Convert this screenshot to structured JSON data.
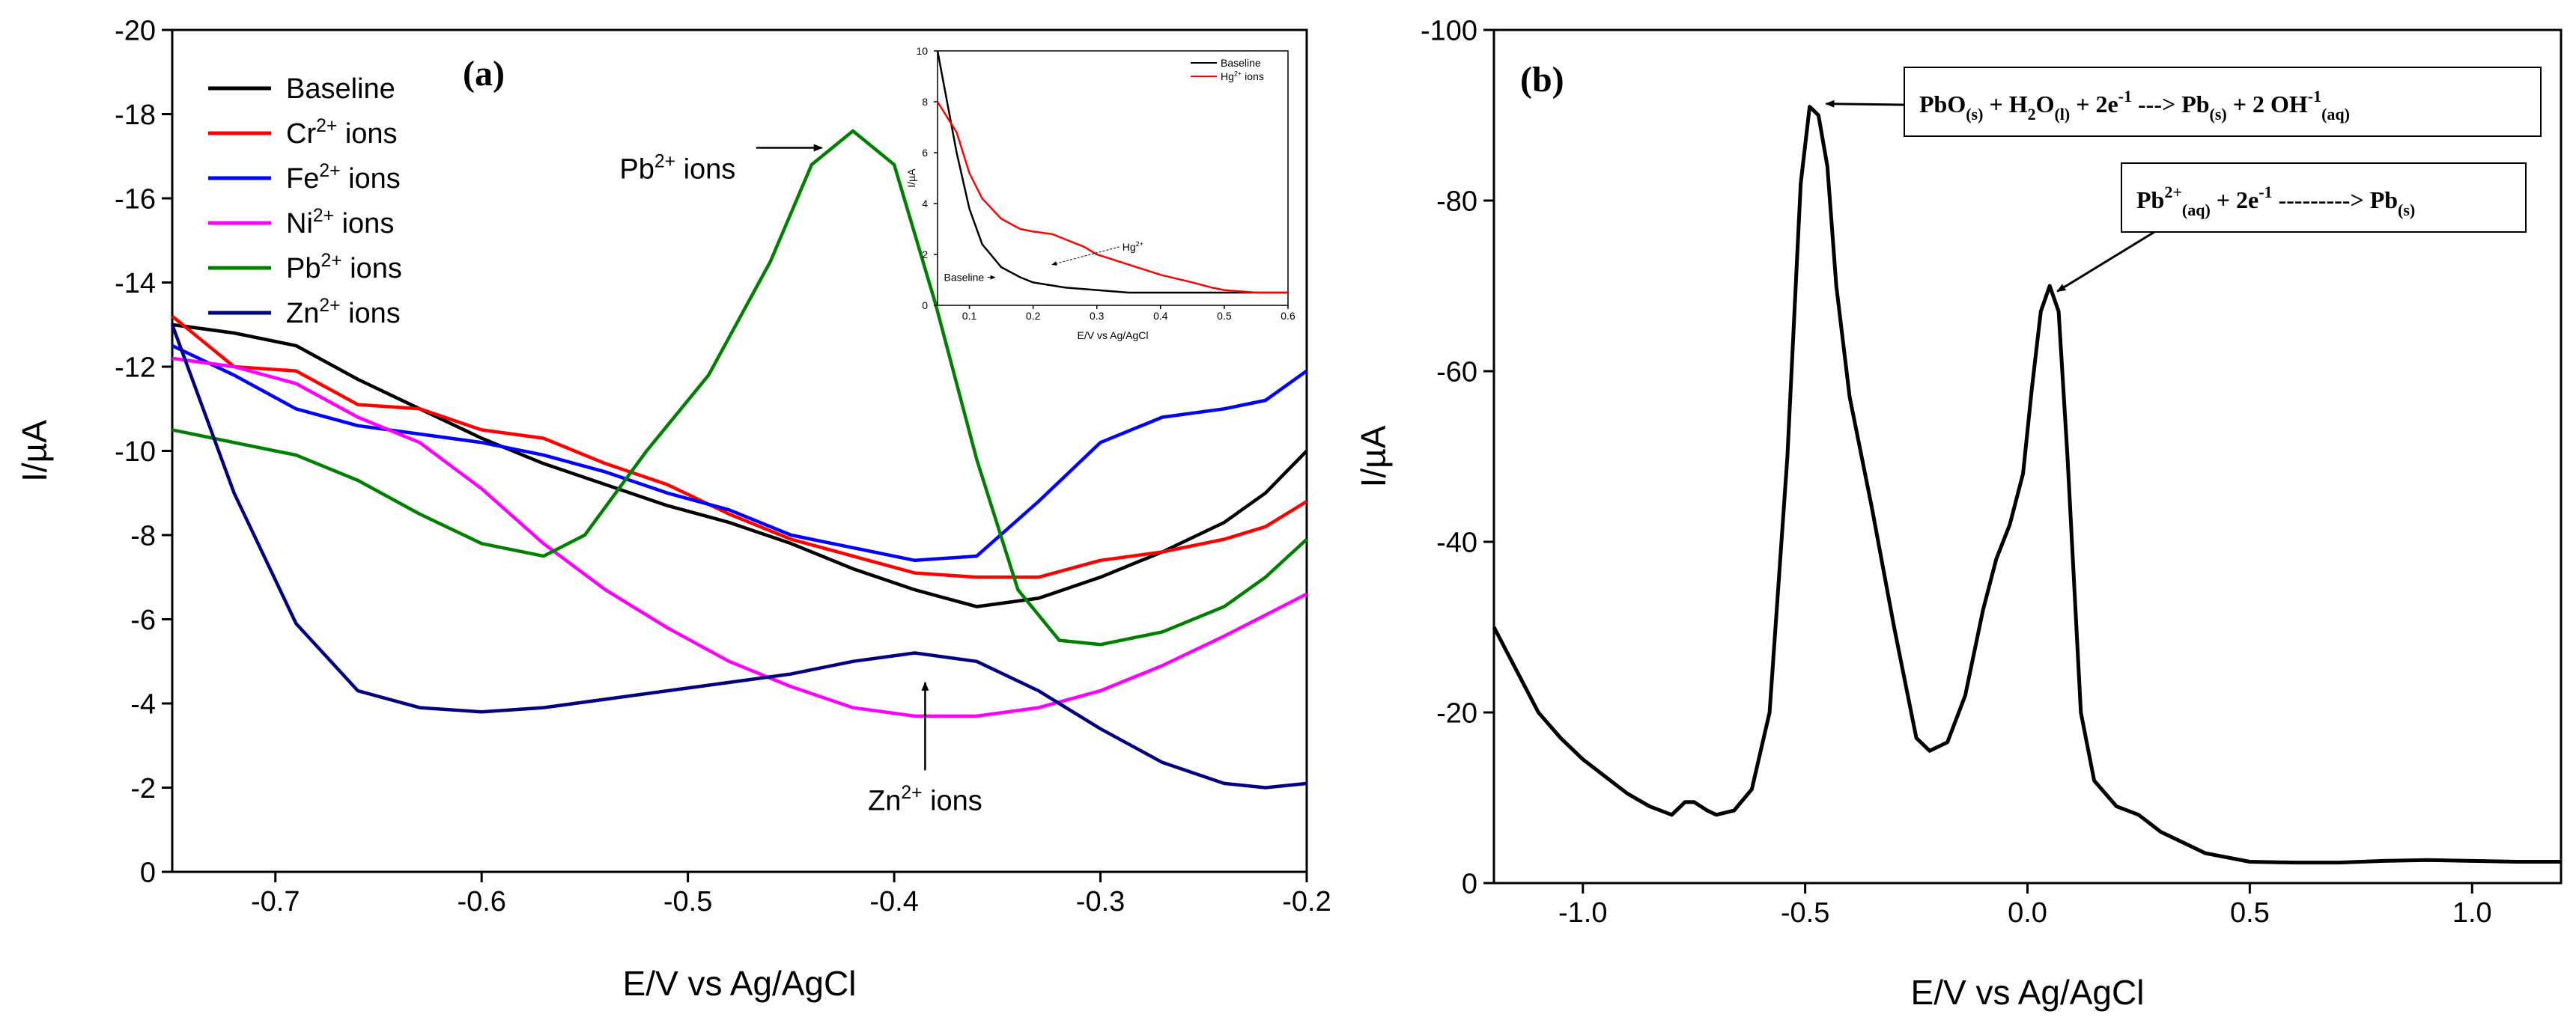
{
  "chart_data": [
    {
      "type": "line",
      "panel_label": "(a)",
      "xlabel": "E/V vs Ag/AgCl",
      "ylabel": "I/µA",
      "xlim": [
        -0.75,
        -0.2
      ],
      "ylim": [
        0,
        -20
      ],
      "x_ticks": [
        -0.7,
        -0.6,
        -0.5,
        -0.4,
        -0.3,
        -0.2
      ],
      "x_tick_labels": [
        "-0.7",
        "-0.6",
        "-0.5",
        "-0.4",
        "-0.3",
        "-0.2"
      ],
      "y_ticks": [
        0,
        -2,
        -4,
        -6,
        -8,
        -10,
        -12,
        -14,
        -16,
        -18,
        -20
      ],
      "y_tick_labels": [
        "0",
        "-2",
        "-4",
        "-6",
        "-8",
        "-10",
        "-12",
        "-14",
        "-16",
        "-18",
        "-20"
      ],
      "legend_position": "top-left",
      "series": [
        {
          "name": "Baseline",
          "color": "#000000",
          "x": [
            -0.75,
            -0.72,
            -0.69,
            -0.66,
            -0.63,
            -0.6,
            -0.57,
            -0.54,
            -0.51,
            -0.48,
            -0.45,
            -0.42,
            -0.39,
            -0.36,
            -0.33,
            -0.3,
            -0.27,
            -0.24,
            -0.22,
            -0.2
          ],
          "y": [
            -13.0,
            -12.8,
            -12.5,
            -11.7,
            -11.0,
            -10.3,
            -9.7,
            -9.2,
            -8.7,
            -8.3,
            -7.8,
            -7.2,
            -6.7,
            -6.3,
            -6.5,
            -7.0,
            -7.6,
            -8.3,
            -9.0,
            -10.0
          ]
        },
        {
          "name": "Cr²⁺ ions",
          "color": "#ff0000",
          "x": [
            -0.75,
            -0.72,
            -0.69,
            -0.66,
            -0.63,
            -0.6,
            -0.57,
            -0.54,
            -0.51,
            -0.48,
            -0.45,
            -0.42,
            -0.39,
            -0.36,
            -0.33,
            -0.3,
            -0.27,
            -0.24,
            -0.22,
            -0.2
          ],
          "y": [
            -13.2,
            -12.0,
            -11.9,
            -11.1,
            -11.0,
            -10.5,
            -10.3,
            -9.7,
            -9.2,
            -8.5,
            -7.9,
            -7.5,
            -7.1,
            -7.0,
            -7.0,
            -7.4,
            -7.6,
            -7.9,
            -8.2,
            -8.8
          ]
        },
        {
          "name": "Fe²⁺ ions",
          "color": "#0000ff",
          "x": [
            -0.75,
            -0.72,
            -0.69,
            -0.66,
            -0.63,
            -0.6,
            -0.57,
            -0.54,
            -0.51,
            -0.48,
            -0.45,
            -0.42,
            -0.39,
            -0.36,
            -0.33,
            -0.3,
            -0.27,
            -0.24,
            -0.22,
            -0.2
          ],
          "y": [
            -12.5,
            -11.8,
            -11.0,
            -10.6,
            -10.4,
            -10.2,
            -9.9,
            -9.5,
            -9.0,
            -8.6,
            -8.0,
            -7.7,
            -7.4,
            -7.5,
            -8.8,
            -10.2,
            -10.8,
            -11.0,
            -11.2,
            -11.9
          ]
        },
        {
          "name": "Ni²⁺ ions",
          "color": "#ff00ff",
          "x": [
            -0.75,
            -0.72,
            -0.69,
            -0.66,
            -0.63,
            -0.6,
            -0.57,
            -0.54,
            -0.51,
            -0.48,
            -0.45,
            -0.42,
            -0.39,
            -0.36,
            -0.33,
            -0.3,
            -0.27,
            -0.24,
            -0.22,
            -0.2
          ],
          "y": [
            -12.2,
            -12.0,
            -11.6,
            -10.8,
            -10.2,
            -9.1,
            -7.8,
            -6.7,
            -5.8,
            -5.0,
            -4.4,
            -3.9,
            -3.7,
            -3.7,
            -3.9,
            -4.3,
            -4.9,
            -5.6,
            -6.1,
            -6.6
          ]
        },
        {
          "name": "Pb²⁺ ions",
          "color": "#008000",
          "x": [
            -0.75,
            -0.72,
            -0.69,
            -0.66,
            -0.63,
            -0.6,
            -0.57,
            -0.55,
            -0.52,
            -0.49,
            -0.46,
            -0.44,
            -0.42,
            -0.4,
            -0.38,
            -0.36,
            -0.34,
            -0.32,
            -0.3,
            -0.27,
            -0.24,
            -0.22,
            -0.2
          ],
          "y": [
            -10.5,
            -10.2,
            -9.9,
            -9.3,
            -8.5,
            -7.8,
            -7.5,
            -8.0,
            -10.0,
            -11.8,
            -14.5,
            -16.8,
            -17.6,
            -16.8,
            -13.5,
            -9.8,
            -6.7,
            -5.5,
            -5.4,
            -5.7,
            -6.3,
            -7.0,
            -7.9
          ]
        },
        {
          "name": "Zn²⁺ ions",
          "color": "#000080",
          "x": [
            -0.75,
            -0.72,
            -0.69,
            -0.66,
            -0.63,
            -0.6,
            -0.57,
            -0.54,
            -0.51,
            -0.48,
            -0.45,
            -0.42,
            -0.39,
            -0.36,
            -0.33,
            -0.3,
            -0.27,
            -0.24,
            -0.22,
            -0.2
          ],
          "y": [
            -13.0,
            -9.0,
            -5.9,
            -4.3,
            -3.9,
            -3.8,
            -3.9,
            -4.1,
            -4.3,
            -4.5,
            -4.7,
            -5.0,
            -5.2,
            -5.0,
            -4.3,
            -3.4,
            -2.6,
            -2.1,
            -2.0,
            -2.1
          ]
        }
      ],
      "annotations": [
        {
          "text": "Pb²⁺ ions",
          "x": -0.505,
          "y": -16.7,
          "arrow_to": [
            -0.435,
            -17.2
          ]
        },
        {
          "text": "Zn²⁺ ions",
          "x": -0.385,
          "y": -1.7,
          "arrow_to": [
            -0.385,
            -4.5
          ]
        }
      ],
      "inset": {
        "type": "line",
        "xlabel": "E/V vs Ag/AgCl",
        "ylabel": "I/µA",
        "xlim": [
          0.05,
          0.6
        ],
        "ylim": [
          0,
          10
        ],
        "x_ticks": [
          0.1,
          0.2,
          0.3,
          0.4,
          0.5,
          0.6
        ],
        "x_tick_labels": [
          "0.1",
          "0.2",
          "0.3",
          "0.4",
          "0.5",
          "0.6"
        ],
        "y_ticks": [
          0,
          2,
          4,
          6,
          8,
          10
        ],
        "y_tick_labels": [
          "0",
          "2",
          "4",
          "6",
          "8",
          "10"
        ],
        "legend_position": "top-right",
        "series": [
          {
            "name": "Baseline",
            "color": "#000000",
            "x": [
              0.05,
              0.08,
              0.1,
              0.12,
              0.15,
              0.18,
              0.2,
              0.25,
              0.3,
              0.35,
              0.4,
              0.45,
              0.5,
              0.55,
              0.6
            ],
            "y": [
              10.0,
              6.0,
              3.8,
              2.4,
              1.5,
              1.1,
              0.9,
              0.7,
              0.6,
              0.5,
              0.5,
              0.5,
              0.5,
              0.5,
              0.5
            ]
          },
          {
            "name": "Hg²⁺ ions",
            "color": "#ff0000",
            "x": [
              0.05,
              0.08,
              0.1,
              0.12,
              0.15,
              0.18,
              0.2,
              0.23,
              0.25,
              0.28,
              0.3,
              0.35,
              0.4,
              0.45,
              0.48,
              0.5,
              0.55,
              0.6
            ],
            "y": [
              8.0,
              6.8,
              5.2,
              4.2,
              3.4,
              3.0,
              2.9,
              2.8,
              2.6,
              2.3,
              2.0,
              1.6,
              1.2,
              0.9,
              0.7,
              0.6,
              0.5,
              0.5
            ]
          }
        ],
        "annotations": [
          {
            "text": "Baseline",
            "x": 0.06,
            "y": 1.1,
            "arrow_to": [
              0.14,
              1.1
            ]
          },
          {
            "text": "Hg²⁺",
            "x": 0.34,
            "y": 2.3,
            "arrow_to": [
              0.23,
              1.6
            ]
          }
        ]
      }
    },
    {
      "type": "line",
      "panel_label": "(b)",
      "xlabel": "E/V vs Ag/AgCl",
      "ylabel": "I/µA",
      "xlim": [
        -1.2,
        1.2
      ],
      "ylim": [
        0,
        -100
      ],
      "x_ticks": [
        -1.0,
        -0.5,
        0.0,
        0.5,
        1.0
      ],
      "x_tick_labels": [
        "-1.0",
        "-0.5",
        "0.0",
        "0.5",
        "1.0"
      ],
      "y_ticks": [
        0,
        -20,
        -40,
        -60,
        -80,
        -100
      ],
      "y_tick_labels": [
        "0",
        "-20",
        "-40",
        "-60",
        "-80",
        "-100"
      ],
      "series": [
        {
          "color": "#000000",
          "x": [
            -1.2,
            -1.15,
            -1.1,
            -1.05,
            -1.0,
            -0.95,
            -0.9,
            -0.85,
            -0.8,
            -0.77,
            -0.75,
            -0.72,
            -0.7,
            -0.66,
            -0.62,
            -0.58,
            -0.54,
            -0.51,
            -0.49,
            -0.47,
            -0.45,
            -0.43,
            -0.4,
            -0.35,
            -0.3,
            -0.25,
            -0.22,
            -0.18,
            -0.14,
            -0.1,
            -0.07,
            -0.04,
            -0.01,
            0.01,
            0.03,
            0.05,
            0.07,
            0.09,
            0.12,
            0.15,
            0.2,
            0.25,
            0.3,
            0.4,
            0.5,
            0.6,
            0.7,
            0.8,
            0.9,
            1.0,
            1.1,
            1.2
          ],
          "y": [
            -30,
            -25,
            -20,
            -17,
            -14.5,
            -12.5,
            -10.5,
            -9,
            -8,
            -9.5,
            -9.5,
            -8.5,
            -8,
            -8.5,
            -11,
            -20,
            -50,
            -82,
            -91,
            -90,
            -84,
            -70,
            -57,
            -44,
            -30,
            -17,
            -15.5,
            -16.5,
            -22,
            -32,
            -38,
            -42,
            -48,
            -58,
            -67,
            -70,
            -67,
            -50,
            -20,
            -12,
            -9,
            -8,
            -6,
            -3.5,
            -2.5,
            -2.4,
            -2.4,
            -2.6,
            -2.7,
            -2.6,
            -2.5,
            -2.5
          ]
        }
      ],
      "annotations": [
        {
          "eq_parts": [
            [
              "PbO",
              ""
            ],
            [
              "(s)",
              "sub"
            ],
            [
              " + H",
              ""
            ],
            [
              "2",
              "sub"
            ],
            [
              "O",
              ""
            ],
            [
              "(l)",
              "sub"
            ],
            [
              " + 2e",
              ""
            ],
            [
              "-1",
              "sup"
            ],
            [
              " ---> Pb",
              ""
            ],
            [
              "(s)",
              "sub"
            ],
            [
              " + 2 OH",
              ""
            ],
            [
              "-1",
              "sup"
            ],
            [
              "(aq)",
              "sub"
            ]
          ],
          "arrow_to": [
            -0.47,
            -91
          ]
        },
        {
          "eq_parts": [
            [
              "Pb",
              ""
            ],
            [
              "2+",
              "sup"
            ],
            [
              "(aq)",
              "sub"
            ],
            [
              " + 2e",
              ""
            ],
            [
              "-1",
              "sup"
            ],
            [
              " ---------> Pb",
              ""
            ],
            [
              "(s)",
              "sub"
            ]
          ],
          "arrow_to": [
            0.05,
            -69
          ]
        }
      ]
    }
  ]
}
